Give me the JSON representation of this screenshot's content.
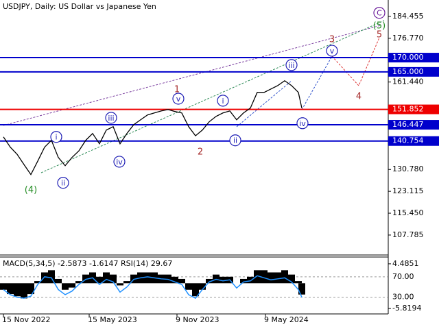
{
  "chart_data": [
    {
      "type": "line",
      "title": "USDJPY, Daily:  US Dollar vs Japanese Yen",
      "x": [
        0,
        10,
        20,
        30,
        40,
        50,
        60,
        70,
        80,
        90,
        100,
        110,
        120,
        130,
        140,
        150,
        160,
        170,
        180,
        190,
        200,
        210,
        220,
        230,
        240,
        250,
        260,
        270,
        280,
        290,
        300,
        310,
        320,
        330,
        340,
        350,
        360,
        370,
        380,
        390,
        400,
        410,
        420,
        430,
        435
      ],
      "series": [
        {
          "color": "#000000",
          "values": [
            142.2,
            138.6,
            136.1,
            132.5,
            129,
            133.7,
            138.6,
            141,
            135,
            132.1,
            135,
            137.3,
            141,
            143.4,
            139.8,
            144.6,
            145.8,
            139.8,
            143.4,
            146.5,
            148.2,
            149.9,
            150.6,
            151.3,
            151.8,
            151.1,
            150.6,
            145.8,
            142.6,
            144.6,
            147.5,
            149.4,
            150.6,
            151.3,
            148.2,
            150.6,
            152.3,
            157.8,
            157.8,
            159,
            160.2,
            161.9,
            160.2,
            157.8,
            152.3
          ]
        }
      ],
      "xlim": [
        -5,
        561
      ],
      "xticks": [
        {
          "value": 0,
          "label": "15 Nov 2022"
        },
        {
          "value": 125,
          "label": "15 May 2023"
        },
        {
          "value": 253,
          "label": "9 Nov 2023"
        },
        {
          "value": 382,
          "label": "9 May 2024"
        }
      ],
      "ylim": [
        101.28,
        190.2
      ],
      "yticks": [
        184.455,
        {
          "value": 176.77,
          "label": "176.770"
        },
        {
          "value": 161.44,
          "label": "161.440"
        },
        {
          "value": 130.78,
          "label": "130.780"
        },
        123.115,
        {
          "value": 115.45,
          "label": "115.450"
        },
        107.785
      ],
      "levels": [
        {
          "value": 170,
          "label": "170.000",
          "color": "#0000cc"
        },
        {
          "value": 165,
          "label": "165.000",
          "color": "#0000cc"
        },
        {
          "value": 151.852,
          "label": "151.852",
          "color": "#ee0000"
        },
        {
          "value": 146.447,
          "label": "146.447",
          "color": "#0000cc"
        },
        {
          "value": 140.754,
          "label": "140.754",
          "color": "#0000cc"
        }
      ],
      "annotations": [
        {
          "text": "(4)",
          "x": 40,
          "y": 123.7,
          "color": "#228b22",
          "circle": false
        },
        {
          "text": "i",
          "x": 77,
          "y": 142.2,
          "color": "#1c1cb4",
          "circle": true
        },
        {
          "text": "ii",
          "x": 87,
          "y": 126.1,
          "color": "#1c1cb4",
          "circle": true
        },
        {
          "text": "iii",
          "x": 157,
          "y": 148.9,
          "color": "#1c1cb4",
          "circle": true
        },
        {
          "text": "iv",
          "x": 169,
          "y": 133.5,
          "color": "#1c1cb4",
          "circle": true
        },
        {
          "text": "v",
          "x": 255,
          "y": 155.6,
          "color": "#1c1cb4",
          "circle": true
        },
        {
          "text": "1",
          "x": 253,
          "y": 158.9,
          "color": "#a52a2a",
          "circle": false
        },
        {
          "text": "2",
          "x": 287,
          "y": 137.1,
          "color": "#a52a2a",
          "circle": false
        },
        {
          "text": "i",
          "x": 320,
          "y": 154.9,
          "color": "#1c1cb4",
          "circle": true
        },
        {
          "text": "ii",
          "x": 338,
          "y": 141,
          "color": "#1c1cb4",
          "circle": true
        },
        {
          "text": "iii",
          "x": 420,
          "y": 167.4,
          "color": "#1c1cb4",
          "circle": true
        },
        {
          "text": "iv",
          "x": 436,
          "y": 147,
          "color": "#1c1cb4",
          "circle": true
        },
        {
          "text": "v",
          "x": 479,
          "y": 172.4,
          "color": "#1c1cb4",
          "circle": true
        },
        {
          "text": "3",
          "x": 479,
          "y": 176.5,
          "color": "#a52a2a",
          "circle": false
        },
        {
          "text": "4",
          "x": 518,
          "y": 156.6,
          "color": "#a52a2a",
          "circle": false
        },
        {
          "text": "5",
          "x": 548,
          "y": 178.2,
          "color": "#a52a2a",
          "circle": false
        },
        {
          "text": "(5)",
          "x": 548,
          "y": 181.3,
          "color": "#228b22",
          "circle": false
        },
        {
          "text": "C",
          "x": 548,
          "y": 185.7,
          "color": "#6a1b9a",
          "circle": true
        }
      ]
    },
    {
      "type": "bar",
      "title": "MACD(5,34,5) -2.5873 -1.6147 RSI(14) 29.67",
      "series": [
        {
          "color": "#000000",
          "values": [
            -1.5,
            -2.5,
            -3,
            -3.5,
            -2.5,
            0.5,
            2.5,
            3,
            1,
            -1.5,
            -1,
            0.5,
            2,
            2.5,
            1.5,
            2.5,
            2,
            -0.5,
            0.5,
            2,
            2.5,
            2.5,
            2.5,
            2,
            2,
            1.5,
            1,
            -1.5,
            -3,
            -1.5,
            1,
            2,
            1.5,
            1.5,
            0,
            1,
            1.5,
            3,
            3,
            2.5,
            2.5,
            3,
            2,
            0.5,
            -2.6
          ]
        },
        {
          "color": "#1e90ff",
          "axis": "y2",
          "values": [
            45,
            35,
            30,
            28,
            32,
            55,
            70,
            68,
            45,
            35,
            42,
            55,
            65,
            68,
            55,
            65,
            60,
            40,
            50,
            65,
            68,
            70,
            68,
            66,
            65,
            60,
            55,
            35,
            28,
            45,
            60,
            65,
            62,
            64,
            48,
            60,
            62,
            72,
            68,
            64,
            66,
            68,
            60,
            45,
            30
          ]
        }
      ],
      "ylim": [
        -6.756,
        5.734
      ],
      "yticks": [
        4.4851,
        -5.8194
      ],
      "y2lim": [
        0,
        106
      ],
      "y2ticks": [
        {
          "value": 70,
          "label": "70.00"
        },
        {
          "value": 30,
          "label": "30.00"
        }
      ]
    }
  ]
}
